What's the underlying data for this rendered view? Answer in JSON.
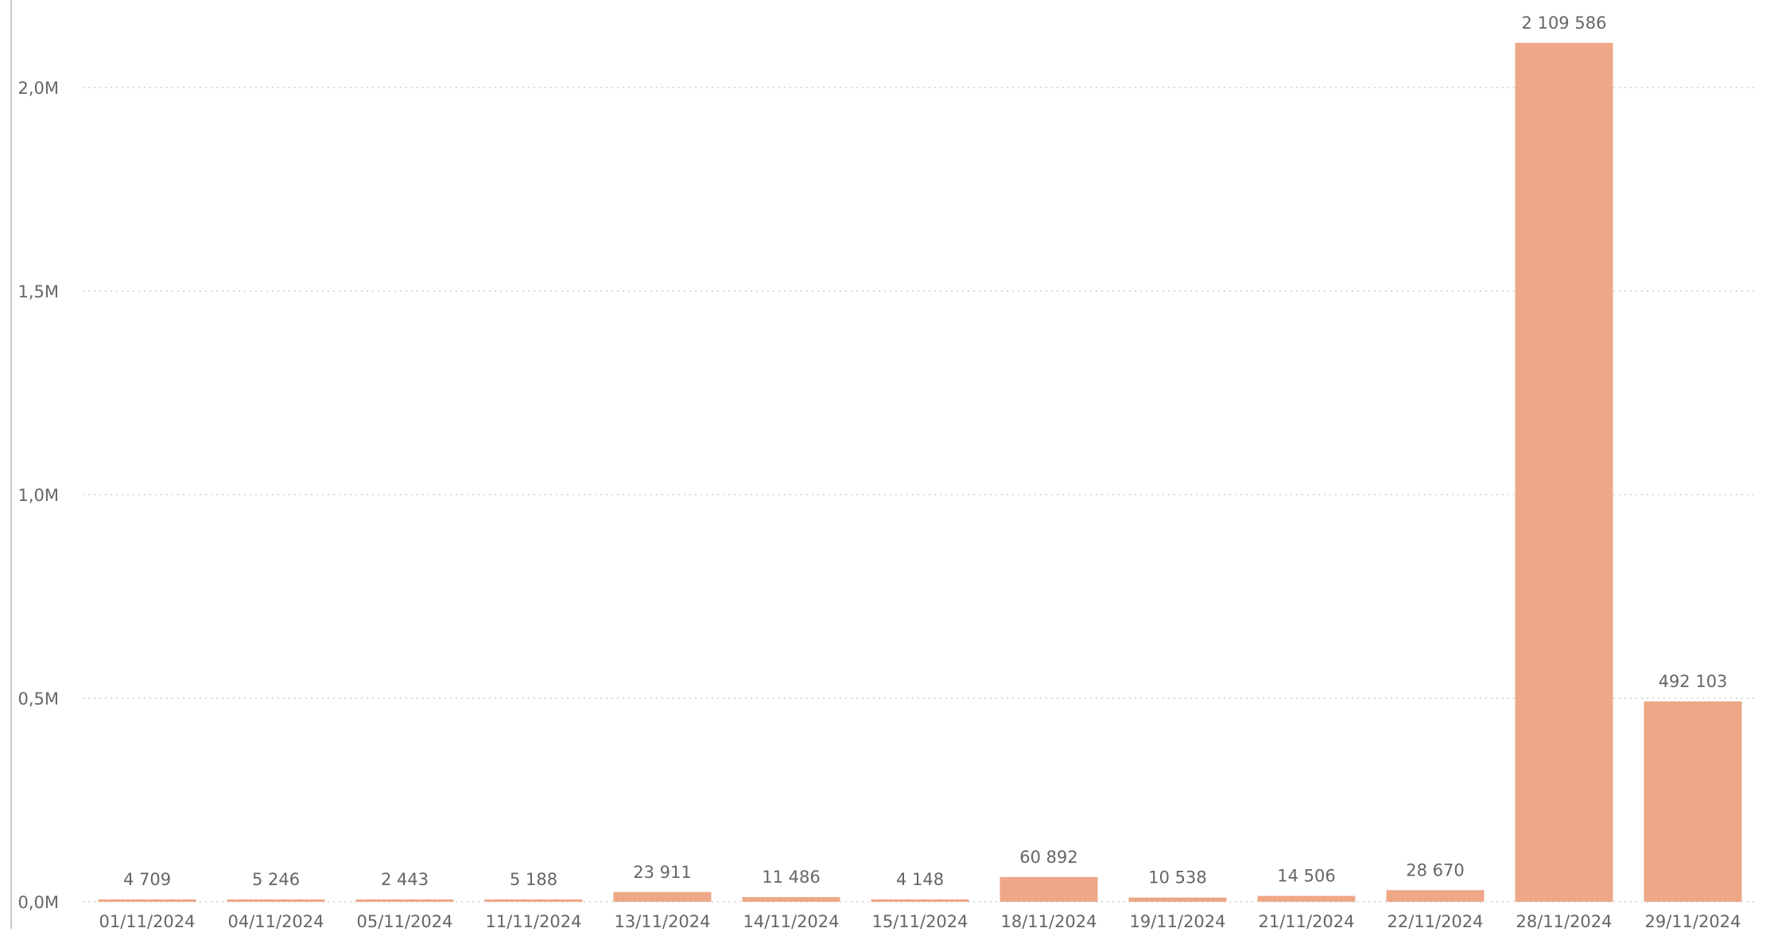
{
  "chart_data": {
    "type": "bar",
    "categories": [
      "01/11/2024",
      "04/11/2024",
      "05/11/2024",
      "11/11/2024",
      "13/11/2024",
      "14/11/2024",
      "15/11/2024",
      "18/11/2024",
      "19/11/2024",
      "21/11/2024",
      "22/11/2024",
      "28/11/2024",
      "29/11/2024"
    ],
    "values": [
      4709,
      5246,
      2443,
      5188,
      23911,
      11486,
      4148,
      60892,
      10538,
      14506,
      28670,
      2109586,
      492103
    ],
    "value_labels": [
      "4 709",
      "5 246",
      "2 443",
      "5 188",
      "23 911",
      "11 486",
      "4 148",
      "60 892",
      "10 538",
      "14 506",
      "28 670",
      "2 109 586",
      "492 103"
    ],
    "y_ticks": [
      0,
      500000,
      1000000,
      1500000,
      2000000
    ],
    "y_tick_labels": [
      "0,0M",
      "0,5M",
      "1,0M",
      "1,5M",
      "2,0M"
    ],
    "ylim": [
      0,
      2000000
    ],
    "grid": true,
    "bar_color": "#EDA887",
    "grid_color": "#cfcfcf",
    "text_color": "#666666"
  }
}
